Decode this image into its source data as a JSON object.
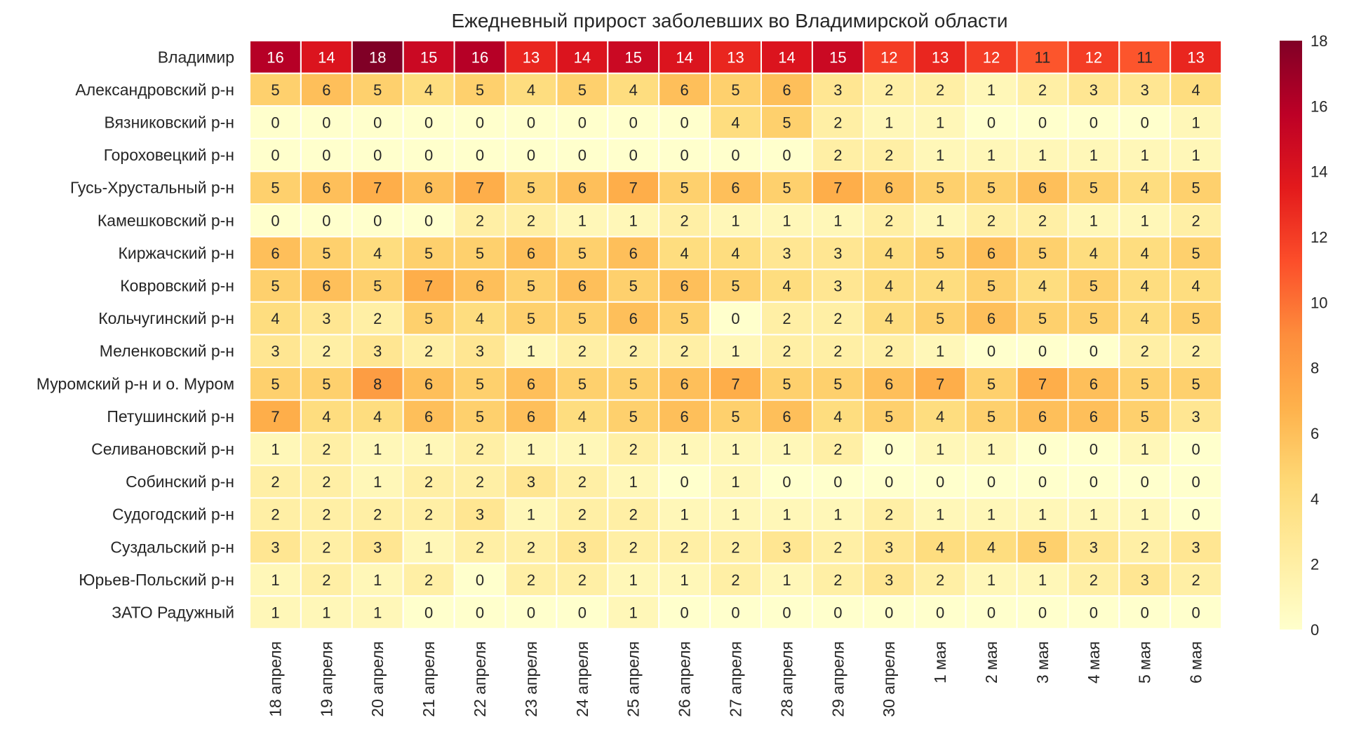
{
  "chart_data": {
    "type": "heatmap",
    "title": "Ежедневный прирост заболевших во Владимирской области",
    "rows": [
      "Владимир",
      "Александровский р-н",
      "Вязниковский р-н",
      "Гороховецкий р-н",
      "Гусь-Хрустальный р-н",
      "Камешковский р-н",
      "Киржачский р-н",
      "Ковровский р-н",
      "Кольчугинский р-н",
      "Меленковский р-н",
      "Муромский р-н и о. Муром",
      "Петушинский р-н",
      "Селивановский р-н",
      "Собинский р-н",
      "Судогодский р-н",
      "Суздальский р-н",
      "Юрьев-Польский р-н",
      "ЗАТО Радужный"
    ],
    "columns": [
      "18 апреля",
      "19 апреля",
      "20 апреля",
      "21 апреля",
      "22 апреля",
      "23 апреля",
      "24 апреля",
      "25 апреля",
      "26 апреля",
      "27 апреля",
      "28 апреля",
      "29 апреля",
      "30 апреля",
      "1 мая",
      "2 мая",
      "3 мая",
      "4 мая",
      "5 мая",
      "6 мая"
    ],
    "values": [
      [
        16,
        14,
        18,
        15,
        16,
        13,
        14,
        15,
        14,
        13,
        14,
        15,
        12,
        13,
        12,
        11,
        12,
        11,
        13
      ],
      [
        5,
        6,
        5,
        4,
        5,
        4,
        5,
        4,
        6,
        5,
        6,
        3,
        2,
        2,
        1,
        2,
        3,
        3,
        4
      ],
      [
        0,
        0,
        0,
        0,
        0,
        0,
        0,
        0,
        0,
        4,
        5,
        2,
        1,
        1,
        0,
        0,
        0,
        0,
        1
      ],
      [
        0,
        0,
        0,
        0,
        0,
        0,
        0,
        0,
        0,
        0,
        0,
        2,
        2,
        1,
        1,
        1,
        1,
        1,
        1
      ],
      [
        5,
        6,
        7,
        6,
        7,
        5,
        6,
        7,
        5,
        6,
        5,
        7,
        6,
        5,
        5,
        6,
        5,
        4,
        5
      ],
      [
        0,
        0,
        0,
        0,
        2,
        2,
        1,
        1,
        2,
        1,
        1,
        1,
        2,
        1,
        2,
        2,
        1,
        1,
        2
      ],
      [
        6,
        5,
        4,
        5,
        5,
        6,
        5,
        6,
        4,
        4,
        3,
        3,
        4,
        5,
        6,
        5,
        4,
        4,
        5
      ],
      [
        5,
        6,
        5,
        7,
        6,
        5,
        6,
        5,
        6,
        5,
        4,
        3,
        4,
        4,
        5,
        4,
        5,
        4,
        4
      ],
      [
        4,
        3,
        2,
        5,
        4,
        5,
        5,
        6,
        5,
        0,
        2,
        2,
        4,
        5,
        6,
        5,
        5,
        4,
        5
      ],
      [
        3,
        2,
        3,
        2,
        3,
        1,
        2,
        2,
        2,
        1,
        2,
        2,
        2,
        1,
        0,
        0,
        0,
        2,
        2
      ],
      [
        5,
        5,
        8,
        6,
        5,
        6,
        5,
        5,
        6,
        7,
        5,
        5,
        6,
        7,
        5,
        7,
        6,
        5,
        5
      ],
      [
        7,
        4,
        4,
        6,
        5,
        6,
        4,
        5,
        6,
        5,
        6,
        4,
        5,
        4,
        5,
        6,
        6,
        5,
        3
      ],
      [
        1,
        2,
        1,
        1,
        2,
        1,
        1,
        2,
        1,
        1,
        1,
        2,
        0,
        1,
        1,
        0,
        0,
        1,
        0
      ],
      [
        2,
        2,
        1,
        2,
        2,
        3,
        2,
        1,
        0,
        1,
        0,
        0,
        0,
        0,
        0,
        0,
        0,
        0,
        0
      ],
      [
        2,
        2,
        2,
        2,
        3,
        1,
        2,
        2,
        1,
        1,
        1,
        1,
        2,
        1,
        1,
        1,
        1,
        1,
        0
      ],
      [
        3,
        2,
        3,
        1,
        2,
        2,
        3,
        2,
        2,
        2,
        3,
        2,
        3,
        4,
        4,
        5,
        3,
        2,
        3
      ],
      [
        1,
        2,
        1,
        2,
        0,
        2,
        2,
        1,
        1,
        2,
        1,
        2,
        3,
        2,
        1,
        1,
        2,
        3,
        2
      ],
      [
        1,
        1,
        1,
        0,
        0,
        0,
        0,
        1,
        0,
        0,
        0,
        0,
        0,
        0,
        0,
        0,
        0,
        0,
        0
      ]
    ],
    "colorbar": {
      "min": 0,
      "max": 18,
      "ticks": [
        0,
        2,
        4,
        6,
        8,
        10,
        12,
        14,
        16,
        18
      ]
    },
    "colormap": "YlOrRd",
    "grid": false,
    "legend": "colorbar-right"
  }
}
